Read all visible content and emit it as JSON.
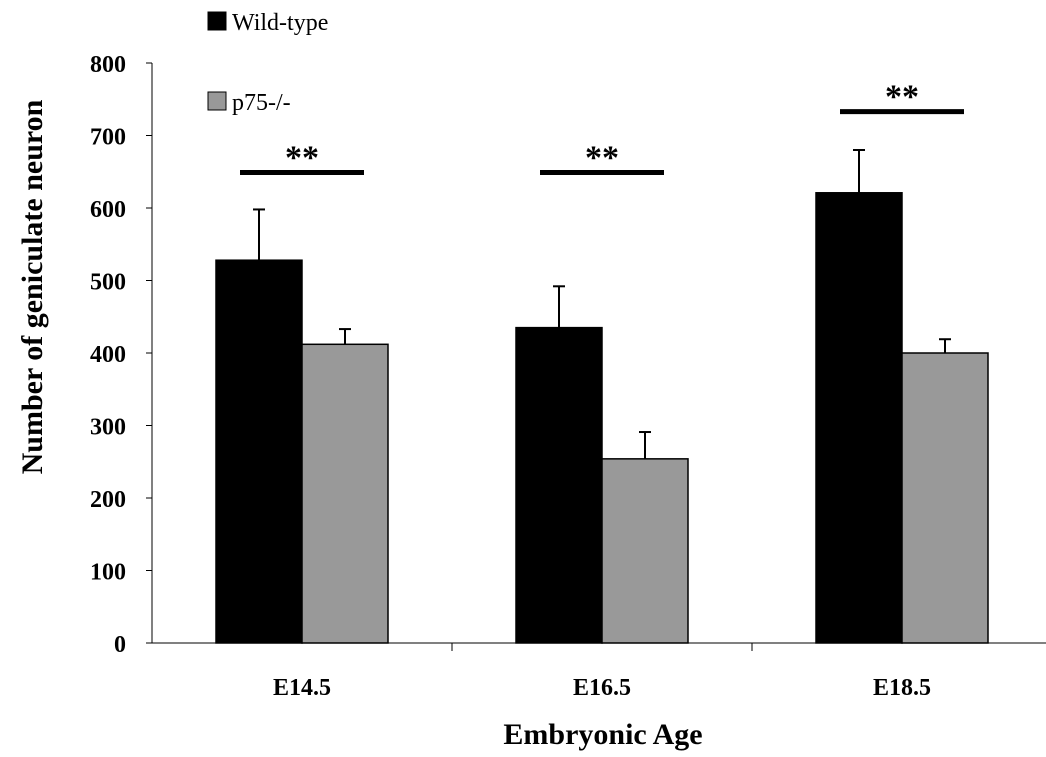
{
  "chart_data": {
    "type": "bar",
    "title": "",
    "xlabel": "Embryonic Age",
    "ylabel": "Number of geniculate neuron",
    "categories": [
      "E14.5",
      "E16.5",
      "E18.5"
    ],
    "ylim": [
      0,
      800
    ],
    "yticks": [
      0,
      100,
      200,
      300,
      400,
      500,
      600,
      700,
      800
    ],
    "ytick_labels": [
      "0",
      "100",
      "200",
      "300",
      "400",
      "500",
      "600",
      "700",
      "800"
    ],
    "series": [
      {
        "name": "Wild-type",
        "color": "#000000",
        "values": [
          528,
          435,
          621
        ],
        "error": [
          70,
          57,
          59
        ]
      },
      {
        "name": "p75-/-",
        "color": "#999999",
        "values": [
          412,
          254,
          400
        ],
        "error": [
          21,
          37,
          19
        ]
      }
    ],
    "significance": [
      {
        "category": "E14.5",
        "label": "**",
        "y": 649
      },
      {
        "category": "E16.5",
        "label": "**",
        "y": 649
      },
      {
        "category": "E18.5",
        "label": "**",
        "y": 733
      }
    ],
    "legend_placement": "top-left",
    "grid": false
  }
}
